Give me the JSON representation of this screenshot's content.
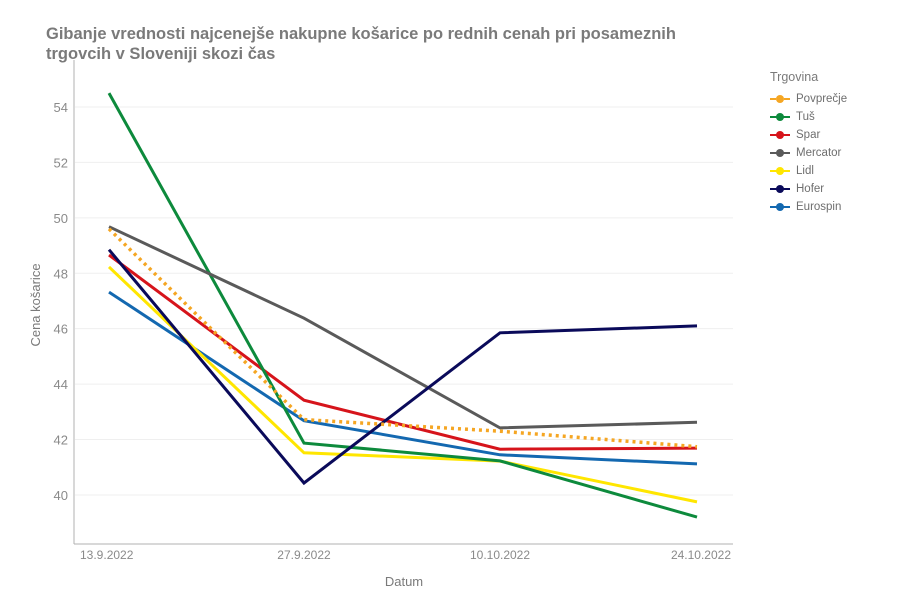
{
  "chart_data": {
    "type": "line",
    "title": "Gibanje vrednosti najcenejše nakupne košarice  po rednih cenah pri posameznih\n trgovcih v Sloveniji skozi čas",
    "xlabel": "Datum",
    "ylabel": "Cena košarice",
    "categories": [
      "13.9.2022",
      "27.9.2022",
      "10.10.2022",
      "24.10.2022"
    ],
    "y_ticks": [
      40,
      42,
      44,
      46,
      48,
      50,
      52,
      54
    ],
    "ylim": [
      38.3,
      55.3
    ],
    "grid": true,
    "legend_title": "Trgovina",
    "legend_position": "right",
    "series": [
      {
        "name": "Povprečje",
        "color": "#f5a623",
        "dashed": true,
        "values": [
          49.6,
          42.72,
          42.3,
          41.74
        ]
      },
      {
        "name": "Tuš",
        "color": "#0d8a3c",
        "dashed": false,
        "values": [
          54.5,
          41.87,
          41.23,
          39.2
        ]
      },
      {
        "name": "Spar",
        "color": "#d6141b",
        "dashed": false,
        "values": [
          48.66,
          43.42,
          41.65,
          41.69
        ]
      },
      {
        "name": "Mercator",
        "color": "#5a5a5a",
        "dashed": false,
        "values": [
          49.68,
          46.38,
          42.42,
          42.62
        ]
      },
      {
        "name": "Lidl",
        "color": "#ffe600",
        "dashed": false,
        "values": [
          48.23,
          41.52,
          41.22,
          39.75
        ]
      },
      {
        "name": "Hofer",
        "color": "#0a0a5a",
        "dashed": false,
        "values": [
          48.85,
          40.43,
          45.85,
          46.1
        ]
      },
      {
        "name": "Eurospin",
        "color": "#1368b0",
        "dashed": false,
        "values": [
          47.32,
          42.68,
          41.45,
          41.12
        ]
      }
    ]
  }
}
